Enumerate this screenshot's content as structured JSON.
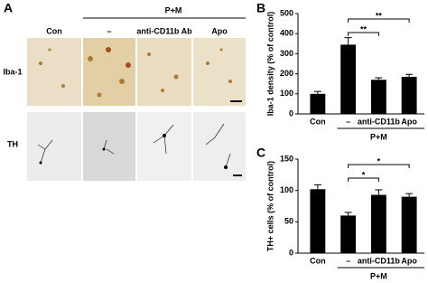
{
  "panel_a": {
    "label": "A",
    "group": "P+M",
    "columns": [
      "Con",
      "–",
      "anti-CD11b Ab",
      "Apo"
    ],
    "rows": [
      "Iba-1",
      "TH"
    ]
  },
  "chart_data": [
    {
      "type": "bar",
      "label": "B",
      "ylabel": "Iba-1 density (% of control)",
      "categories": [
        "Con",
        "–",
        "anti-CD11b",
        "Apo"
      ],
      "group": "P+M",
      "values": [
        100,
        345,
        170,
        185
      ],
      "errors": [
        12,
        35,
        10,
        12
      ],
      "color": "#000000",
      "ylim": [
        0,
        500
      ],
      "yticks": [
        0,
        100,
        200,
        300,
        400,
        500
      ],
      "annotations": [
        "**",
        "**"
      ]
    },
    {
      "type": "bar",
      "label": "C",
      "ylabel": "TH+ cells (% of control)",
      "categories": [
        "Con",
        "–",
        "anti-CD11b",
        "Apo"
      ],
      "group": "P+M",
      "values": [
        102,
        60,
        93,
        90
      ],
      "errors": [
        7,
        5,
        8,
        5
      ],
      "color": "#000000",
      "ylim": [
        0,
        150
      ],
      "yticks": [
        0,
        50,
        100,
        150
      ],
      "annotations": [
        "*",
        "*"
      ]
    }
  ]
}
